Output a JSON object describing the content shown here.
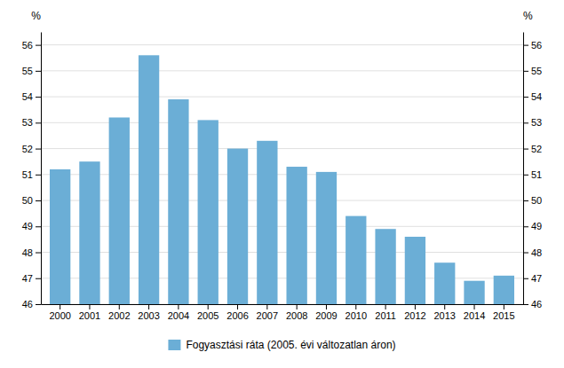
{
  "chart_data": {
    "type": "bar",
    "categories": [
      2000,
      2001,
      2002,
      2003,
      2004,
      2005,
      2006,
      2007,
      2008,
      2009,
      2010,
      2011,
      2012,
      2013,
      2014,
      2015
    ],
    "series": [
      {
        "name": "Fogyasztási ráta (2005. évi változatlan áron)",
        "color": "#6baed6",
        "values": [
          51.2,
          51.5,
          53.2,
          55.6,
          53.9,
          53.1,
          52.0,
          52.3,
          51.3,
          51.1,
          49.4,
          48.9,
          48.6,
          47.6,
          46.9,
          47.1
        ]
      }
    ],
    "ylabel": "%",
    "y2label": "%",
    "ylim": [
      46,
      56.5
    ],
    "yticks": [
      46,
      47,
      48,
      49,
      50,
      51,
      52,
      53,
      54,
      55,
      56
    ],
    "y2lim": [
      46,
      56.5
    ],
    "y2ticks": [
      46,
      47,
      48,
      49,
      50,
      51,
      52,
      53,
      54,
      55,
      56
    ],
    "grid": true,
    "legend": "bottom"
  }
}
